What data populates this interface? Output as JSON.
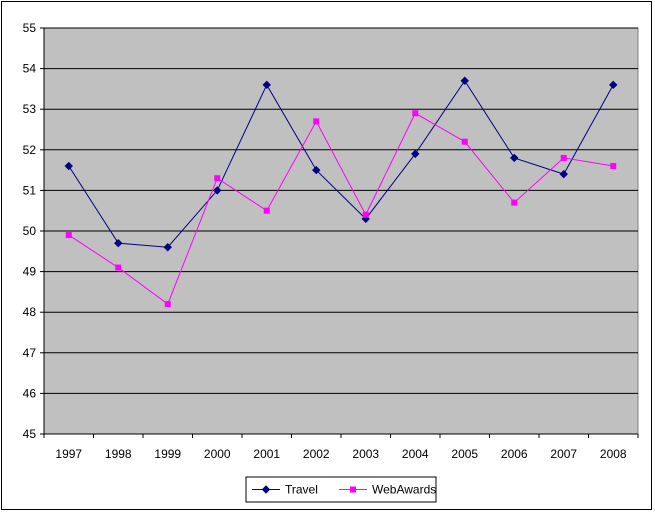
{
  "chart_data": {
    "type": "line",
    "title": "",
    "xlabel": "",
    "ylabel": "",
    "categories": [
      "1997",
      "1998",
      "1999",
      "2000",
      "2001",
      "2002",
      "2003",
      "2004",
      "2005",
      "2006",
      "2007",
      "2008"
    ],
    "series": [
      {
        "name": "Travel",
        "values": [
          51.6,
          49.7,
          49.6,
          51.0,
          53.6,
          51.5,
          50.3,
          51.9,
          53.7,
          51.8,
          51.4,
          53.6
        ],
        "color": "#000080",
        "marker": "diamond"
      },
      {
        "name": "WebAwards",
        "values": [
          49.9,
          49.1,
          48.2,
          51.3,
          50.5,
          52.7,
          50.4,
          52.9,
          52.2,
          50.7,
          51.8,
          51.6
        ],
        "color": "#FF00FF",
        "marker": "square"
      }
    ],
    "ylim": [
      45,
      55
    ],
    "yticks": [
      45,
      46,
      47,
      48,
      49,
      50,
      51,
      52,
      53,
      54,
      55
    ],
    "grid": true,
    "plot_background": "#C0C0C0",
    "legend_position": "bottom"
  }
}
